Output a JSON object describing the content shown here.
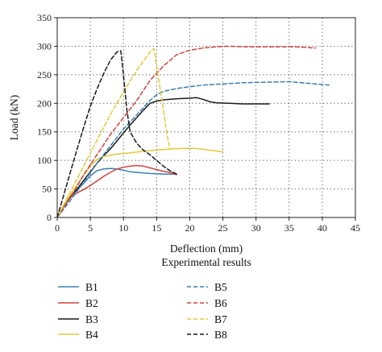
{
  "chart_data": {
    "type": "line",
    "title": "",
    "subtitle": "Experimental results",
    "xlabel": "Deflection (mm)",
    "ylabel": "Load (kN)",
    "xlim": [
      0,
      45
    ],
    "ylim": [
      0,
      350
    ],
    "xticks": [
      "0",
      "5",
      "10",
      "15",
      "20",
      "25",
      "30",
      "35",
      "40",
      "45"
    ],
    "yticks": [
      "0",
      "50",
      "100",
      "150",
      "200",
      "250",
      "300",
      "350"
    ],
    "grid": true,
    "legend_position": "bottom",
    "series": [
      {
        "name": "B1",
        "color": "#3a7fb0",
        "dash": "solid",
        "x": [
          0,
          1,
          2,
          3,
          4,
          5,
          6,
          7,
          8,
          9,
          10,
          11,
          12,
          14,
          16,
          18
        ],
        "y": [
          0,
          20,
          35,
          48,
          60,
          73,
          82,
          85,
          86,
          85,
          83,
          80,
          79,
          77,
          76,
          76
        ]
      },
      {
        "name": "B2",
        "color": "#d0453f",
        "dash": "solid",
        "x": [
          0,
          1,
          2,
          3,
          4,
          5,
          6,
          7,
          8,
          9,
          10,
          11,
          12,
          13,
          14,
          15,
          16,
          17,
          18
        ],
        "y": [
          0,
          20,
          35,
          43,
          49,
          56,
          64,
          72,
          79,
          85,
          88,
          90,
          91,
          90,
          87,
          84,
          81,
          79,
          75
        ]
      },
      {
        "name": "B3",
        "color": "#1a1a1a",
        "dash": "solid",
        "x": [
          0,
          1,
          2,
          3,
          4,
          5,
          6,
          7,
          8,
          9,
          10,
          11,
          12,
          13,
          14,
          15,
          16,
          18,
          20,
          21,
          22,
          23,
          24,
          26,
          28,
          30,
          32
        ],
        "y": [
          0,
          22,
          37,
          50,
          65,
          80,
          95,
          108,
          120,
          134,
          148,
          162,
          175,
          188,
          200,
          204,
          206,
          208,
          209,
          210,
          207,
          203,
          201,
          200,
          199,
          199,
          199
        ]
      },
      {
        "name": "B4",
        "color": "#e3c93b",
        "dash": "solid",
        "x": [
          0,
          1,
          2,
          3,
          4,
          5,
          6,
          7,
          9,
          11,
          13,
          15,
          17,
          19,
          21,
          23,
          25
        ],
        "y": [
          0,
          22,
          40,
          57,
          74,
          90,
          102,
          107,
          111,
          113,
          116,
          118,
          120,
          121,
          121,
          118,
          115
        ]
      },
      {
        "name": "B5",
        "color": "#3a7fb0",
        "dash": "dashed",
        "x": [
          0,
          2,
          4,
          6,
          8,
          10,
          12,
          14,
          15,
          16,
          18,
          20,
          22,
          25,
          28,
          31,
          35,
          38,
          41
        ],
        "y": [
          0,
          30,
          62,
          95,
          125,
          155,
          180,
          205,
          215,
          221,
          226,
          229,
          232,
          234,
          236,
          237,
          238,
          235,
          232
        ]
      },
      {
        "name": "B6",
        "color": "#d0453f",
        "dash": "dashed",
        "x": [
          0,
          2,
          4,
          6,
          8,
          10,
          12,
          14,
          16,
          18,
          20,
          22,
          24,
          26,
          28,
          30,
          33,
          36,
          39
        ],
        "y": [
          0,
          35,
          75,
          110,
          145,
          175,
          205,
          240,
          265,
          285,
          293,
          297,
          299,
          300,
          299,
          299,
          299,
          299,
          297
        ]
      },
      {
        "name": "B7",
        "color": "#e3c93b",
        "dash": "dashed",
        "x": [
          0,
          2,
          4,
          6,
          8,
          10,
          12,
          14,
          14.6,
          15.2,
          16,
          16.5,
          17
        ],
        "y": [
          0,
          45,
          90,
          135,
          180,
          220,
          258,
          290,
          296,
          250,
          190,
          150,
          120
        ]
      },
      {
        "name": "B8",
        "color": "#1a1a1a",
        "dash": "dashed",
        "x": [
          0,
          1,
          2,
          3,
          4,
          5,
          6,
          7,
          8,
          9,
          9.6,
          10,
          10.5,
          11,
          12,
          13,
          14,
          15,
          16,
          17,
          18
        ],
        "y": [
          0,
          40,
          80,
          120,
          158,
          195,
          225,
          252,
          275,
          290,
          292,
          250,
          190,
          150,
          130,
          118,
          110,
          100,
          90,
          82,
          76
        ]
      }
    ]
  }
}
